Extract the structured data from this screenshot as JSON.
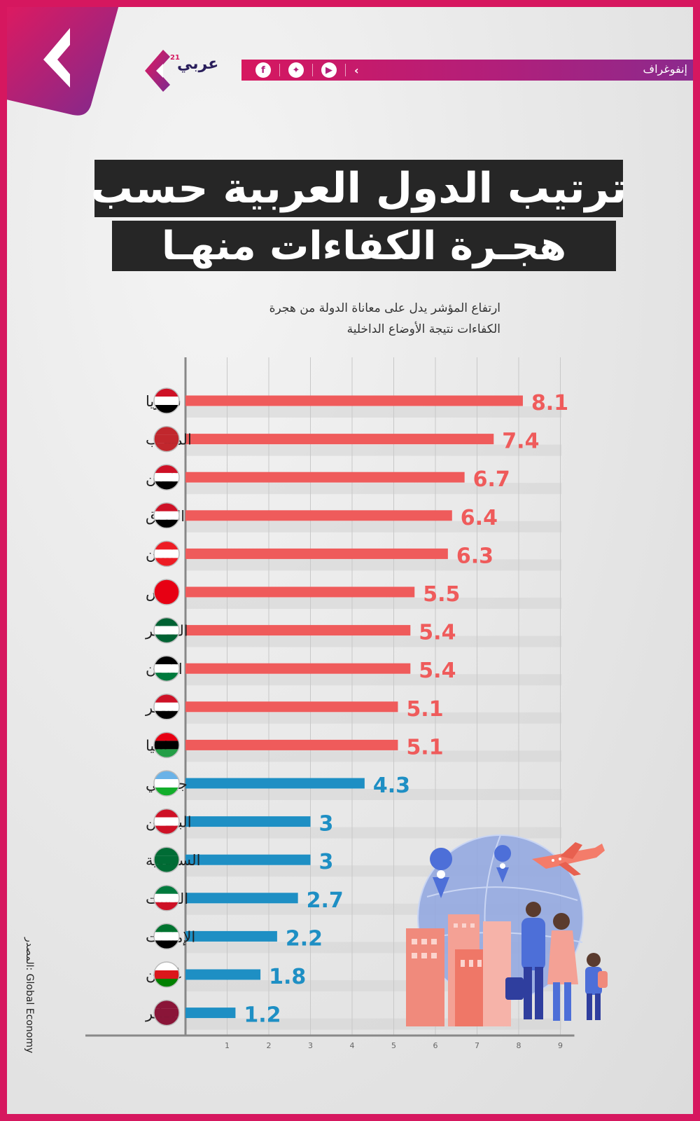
{
  "header": {
    "section_label": "إنفوغراف",
    "brand_name": "عربي",
    "brand_superscript": "21",
    "social_icons": [
      "facebook-icon",
      "twitter-icon",
      "youtube-icon",
      "arabi21-icon"
    ]
  },
  "title": {
    "line1": "ترتيب الدول العربية حسب",
    "line2": "هجـرة الكفاءات منهـا"
  },
  "subtitle": {
    "line1": "ارتفاع المؤشر يدل على معاناة الدولة من هجرة",
    "line2": "الكفاءات نتيجة الأوضاع الداخلية"
  },
  "source": "المصدر: Global Economy",
  "colors": {
    "frame": "#d6175f",
    "high_bar": "#ef5b5b",
    "low_bar": "#1e8fc4",
    "title_bg": "#262626"
  },
  "chart_data": {
    "type": "bar",
    "orientation": "horizontal",
    "categories": [
      "سوريا",
      "المغرب",
      "اليمن",
      "العراق",
      "لبنان",
      "تونس",
      "الجزائر",
      "الأردن",
      "مصر",
      "ليبيا",
      "جيبوتي",
      "البحرين",
      "السعودية",
      "الكويت",
      "الإمارات",
      "عُمـان",
      "قطـر"
    ],
    "values": [
      8.1,
      7.4,
      6.7,
      6.4,
      6.3,
      5.5,
      5.4,
      5.4,
      5.1,
      5.1,
      4.3,
      3,
      3,
      2.7,
      2.2,
      1.8,
      1.2
    ],
    "value_labels": [
      "8.1",
      "7.4",
      "6.7",
      "6.4",
      "6.3",
      "5.5",
      "5.4",
      "5.4",
      "5.1",
      "5.1",
      "4.3",
      "3",
      "3",
      "2.7",
      "2.2",
      "1.8",
      "1.2"
    ],
    "flag_icons": [
      "syria-flag-icon",
      "morocco-flag-icon",
      "yemen-flag-icon",
      "iraq-flag-icon",
      "lebanon-flag-icon",
      "tunisia-flag-icon",
      "algeria-flag-icon",
      "jordan-flag-icon",
      "egypt-flag-icon",
      "libya-flag-icon",
      "djibouti-flag-icon",
      "bahrain-flag-icon",
      "saudi-flag-icon",
      "kuwait-flag-icon",
      "uae-flag-icon",
      "oman-flag-icon",
      "qatar-flag-icon"
    ],
    "xlim": [
      0,
      9
    ],
    "xticks": [
      1,
      2,
      3,
      4,
      5,
      6,
      7,
      8,
      9
    ],
    "grid": true,
    "color_threshold": 5,
    "high_color": "#ef5b5b",
    "low_color": "#1e8fc4"
  }
}
